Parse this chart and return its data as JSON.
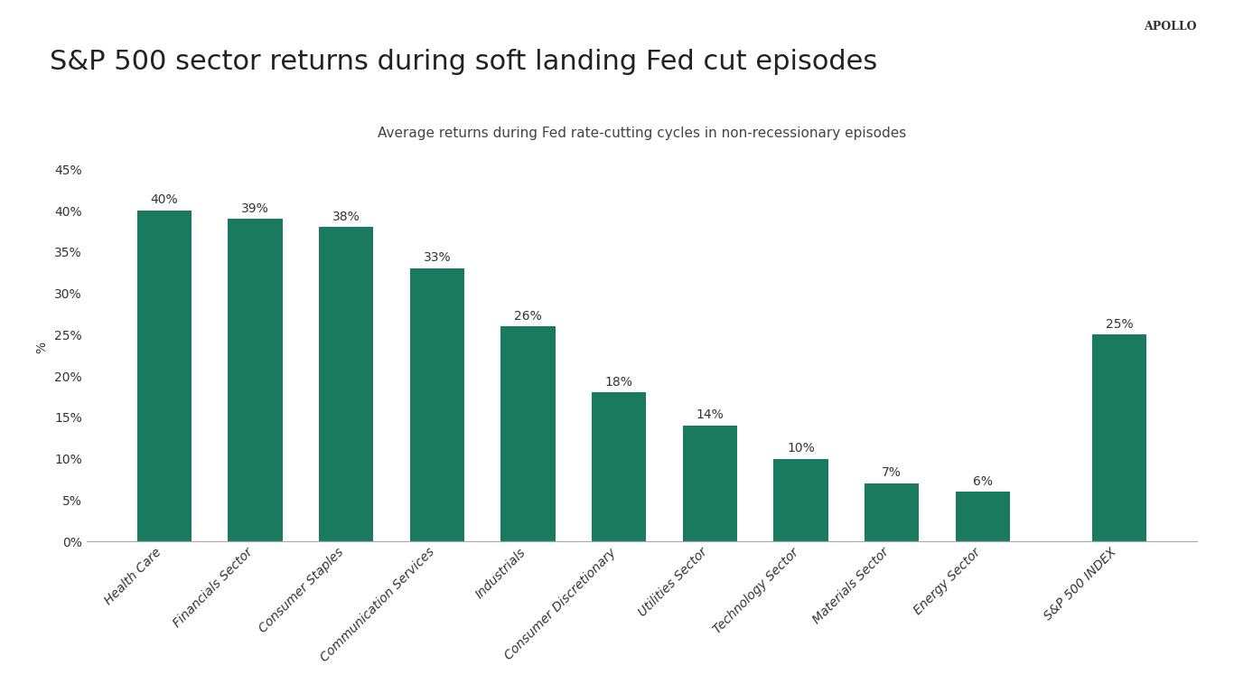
{
  "title": "S&P 500 sector returns during soft landing Fed cut episodes",
  "subtitle": "Average returns during Fed rate-cutting cycles in non-recessionary episodes",
  "watermark": "APOLLO",
  "ylabel": "%",
  "categories": [
    "Health Care",
    "Financials Sector",
    "Consumer Staples",
    "Communication Services",
    "Industrials",
    "Consumer Discretionary",
    "Utilities Sector",
    "Technology Sector",
    "Materials Sector",
    "Energy Sector",
    "S&P 500 INDEX"
  ],
  "values": [
    40,
    39,
    38,
    33,
    26,
    18,
    14,
    10,
    7,
    6,
    25
  ],
  "bar_color": "#1a7a5e",
  "background_color": "#ffffff",
  "ylim": [
    0,
    47
  ],
  "yticks": [
    0,
    5,
    10,
    15,
    20,
    25,
    30,
    35,
    40,
    45
  ],
  "title_fontsize": 22,
  "subtitle_fontsize": 11,
  "label_fontsize": 10,
  "tick_label_fontsize": 10,
  "bar_label_fontsize": 10,
  "watermark_fontsize": 9
}
